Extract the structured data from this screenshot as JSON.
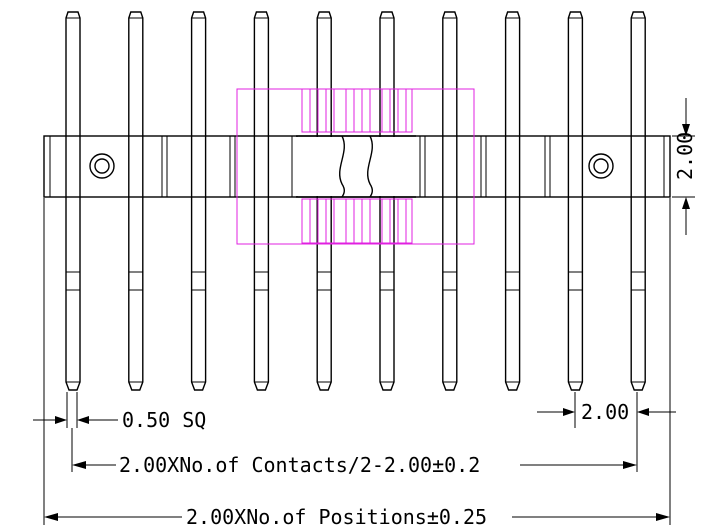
{
  "colors": {
    "line": "#000000",
    "highlight": "#e020e0",
    "background": "#ffffff"
  },
  "drawing": {
    "pin_count": 10,
    "housing_break": "wavy-break",
    "mounting_holes": 2
  },
  "dimensions": {
    "pin_size": "0.50 SQ",
    "pitch": "2.00",
    "housing_height": "2.00",
    "contact_span": "2.00XNo.of Contacts/2-2.00±0.2",
    "overall_length": "2.00XNo.of Positions±0.25"
  }
}
